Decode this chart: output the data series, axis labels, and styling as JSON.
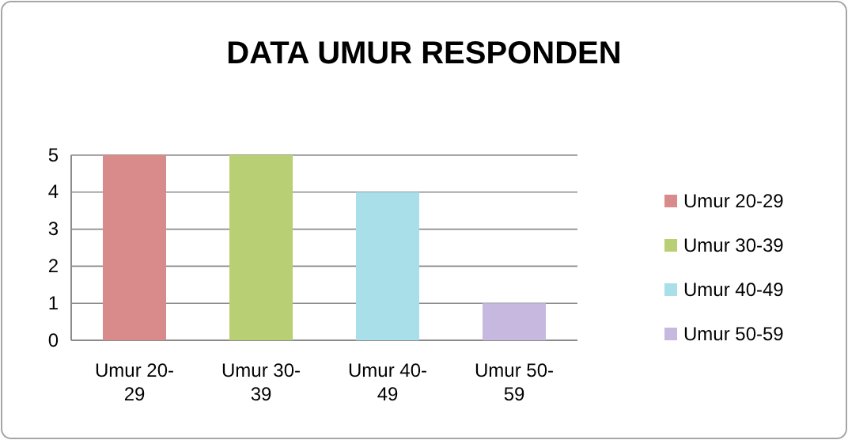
{
  "chart_data": {
    "type": "bar",
    "title": "DATA UMUR RESPONDEN",
    "categories": [
      "Umur 20-29",
      "Umur 30-39",
      "Umur 40-49",
      "Umur 50-59"
    ],
    "series": [
      {
        "name": "Umur 20-29",
        "color": "#d98b8b",
        "values": [
          5,
          null,
          null,
          null
        ]
      },
      {
        "name": "Umur 30-39",
        "color": "#b9cf74",
        "values": [
          null,
          5,
          null,
          null
        ]
      },
      {
        "name": "Umur 40-49",
        "color": "#a9dfe9",
        "values": [
          null,
          null,
          4,
          null
        ]
      },
      {
        "name": "Umur 50-59",
        "color": "#c6b8df",
        "values": [
          null,
          null,
          null,
          1
        ]
      }
    ],
    "ylim": [
      0,
      5
    ],
    "yticks": [
      0,
      1,
      2,
      3,
      4,
      5
    ],
    "grid": "y",
    "legend": "right"
  }
}
